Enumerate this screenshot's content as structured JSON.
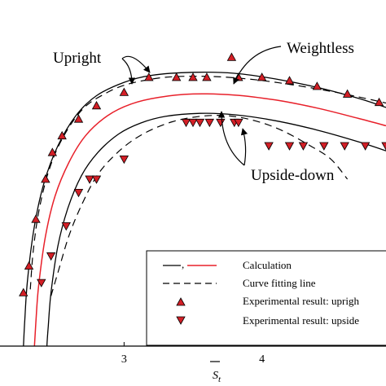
{
  "chart_data": {
    "type": "scatter",
    "title": "",
    "xlabel": "S_t",
    "ylabel": "",
    "xlim": [
      2.1,
      4.9
    ],
    "ylim": [
      0,
      1
    ],
    "xticks": [
      3,
      4
    ],
    "grid": false,
    "legend_position": "bottom-right",
    "legend": [
      {
        "key": "calc",
        "label": "Calculation",
        "marker": "line-solid-black-red"
      },
      {
        "key": "fit",
        "label": "Curve fitting line",
        "marker": "line-dashed"
      },
      {
        "key": "up",
        "label": "Experimental result: uprigh",
        "marker": "triangle-up"
      },
      {
        "key": "down",
        "label": "Experimental result: upside",
        "marker": "triangle-down"
      }
    ],
    "annotations": {
      "upright": "Upright",
      "weightless": "Weightless",
      "upside_down": "Upside-down"
    },
    "colors": {
      "calc_center": "#e8202a",
      "marker_fill": "#d31f26",
      "marker_edge": "#000000",
      "axis": "#000000"
    },
    "series": [
      {
        "key": "calc_upright",
        "style": "solid-black",
        "x": [
          2.27,
          2.28,
          2.3,
          2.35,
          2.42,
          2.52,
          2.65,
          2.8,
          3.0,
          3.2,
          3.5,
          3.8,
          4.1,
          4.4,
          4.7,
          4.9
        ],
        "y": [
          0.0,
          0.08,
          0.2,
          0.36,
          0.49,
          0.6,
          0.69,
          0.75,
          0.79,
          0.811,
          0.82,
          0.817,
          0.8,
          0.775,
          0.742,
          0.715
        ]
      },
      {
        "key": "calc_weightless",
        "style": "solid-red",
        "x": [
          2.35,
          2.36,
          2.38,
          2.43,
          2.5,
          2.6,
          2.72,
          2.88,
          3.05,
          3.25,
          3.5,
          3.8,
          4.1,
          4.4,
          4.7,
          4.9
        ],
        "y": [
          0.0,
          0.07,
          0.18,
          0.33,
          0.45,
          0.55,
          0.63,
          0.69,
          0.725,
          0.745,
          0.755,
          0.752,
          0.737,
          0.713,
          0.682,
          0.66
        ]
      },
      {
        "key": "calc_upside_down",
        "style": "solid-black",
        "x": [
          2.44,
          2.45,
          2.47,
          2.52,
          2.59,
          2.69,
          2.81,
          2.96,
          3.12,
          3.3,
          3.55,
          3.8,
          4.1,
          4.4,
          4.7,
          4.9
        ],
        "y": [
          0.0,
          0.06,
          0.16,
          0.3,
          0.41,
          0.51,
          0.58,
          0.635,
          0.668,
          0.688,
          0.697,
          0.693,
          0.675,
          0.647,
          0.612,
          0.585
        ]
      },
      {
        "key": "fit_upright",
        "style": "dashed",
        "x": [
          2.32,
          2.34,
          2.38,
          2.45,
          2.55,
          2.7,
          2.88,
          3.05,
          3.3,
          3.6,
          3.9,
          4.2,
          4.5,
          4.75,
          4.9
        ],
        "y": [
          0.17,
          0.28,
          0.4,
          0.52,
          0.62,
          0.71,
          0.76,
          0.787,
          0.805,
          0.808,
          0.8,
          0.784,
          0.763,
          0.742,
          0.728
        ]
      },
      {
        "key": "fit_upside_down",
        "style": "dashed",
        "x": [
          2.47,
          2.52,
          2.6,
          2.7,
          2.82,
          2.98,
          3.15,
          3.35,
          3.55,
          3.75,
          3.95,
          4.15,
          4.35,
          4.5,
          4.62
        ],
        "y": [
          0.15,
          0.22,
          0.33,
          0.43,
          0.52,
          0.59,
          0.638,
          0.672,
          0.688,
          0.69,
          0.675,
          0.645,
          0.6,
          0.56,
          0.5
        ]
      },
      {
        "key": "exp_upright",
        "marker": "triangle-up",
        "x": [
          2.27,
          2.31,
          2.36,
          2.43,
          2.48,
          2.55,
          2.67,
          2.8,
          3.0,
          3.18,
          3.38,
          3.5,
          3.6,
          3.78,
          3.83,
          4.0,
          4.2,
          4.4,
          4.62,
          4.85
        ],
        "y": [
          0.16,
          0.24,
          0.38,
          0.5,
          0.58,
          0.63,
          0.68,
          0.72,
          0.76,
          0.805,
          0.805,
          0.805,
          0.805,
          0.865,
          0.805,
          0.805,
          0.795,
          0.778,
          0.755,
          0.73
        ]
      },
      {
        "key": "exp_upside_down",
        "marker": "triangle-down",
        "x": [
          2.4,
          2.47,
          2.58,
          2.67,
          2.75,
          2.8,
          3.0,
          3.45,
          3.5,
          3.55,
          3.62,
          3.7,
          3.8,
          3.83,
          4.05,
          4.2,
          4.3,
          4.45,
          4.6,
          4.75,
          4.9
        ],
        "y": [
          0.19,
          0.27,
          0.36,
          0.46,
          0.5,
          0.5,
          0.56,
          0.67,
          0.67,
          0.67,
          0.67,
          0.67,
          0.67,
          0.67,
          0.6,
          0.6,
          0.6,
          0.6,
          0.6,
          0.6,
          0.6
        ]
      }
    ]
  }
}
